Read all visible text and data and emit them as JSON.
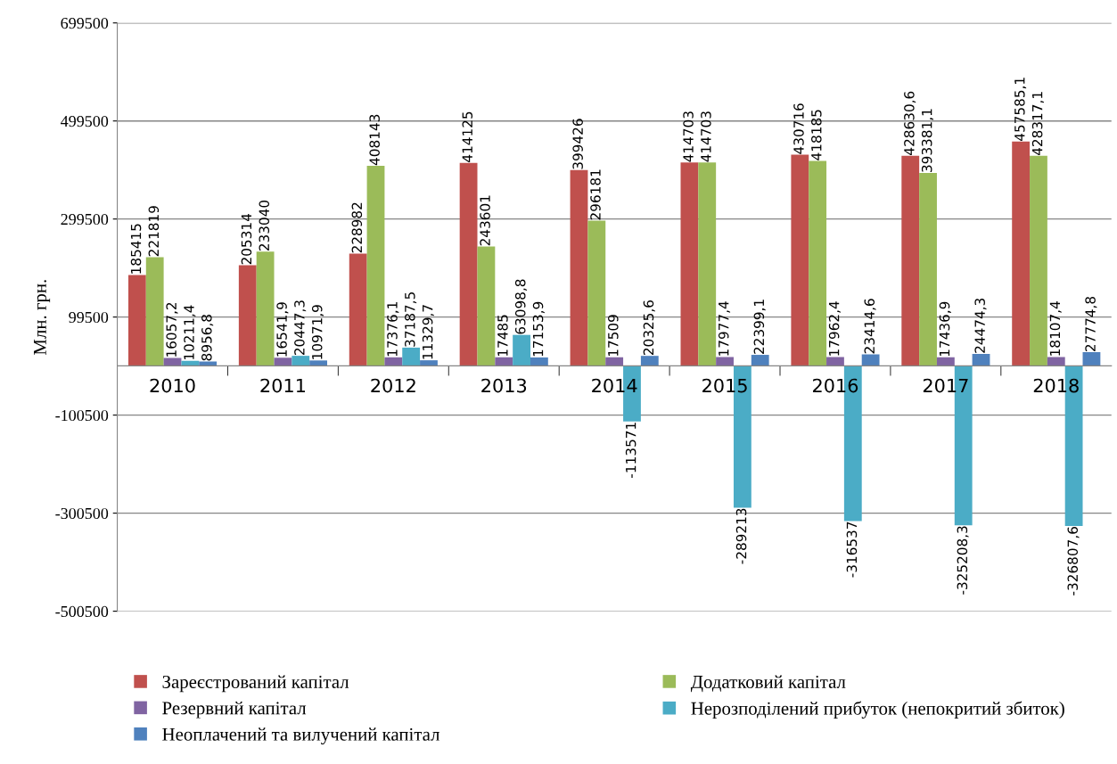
{
  "chart_data": {
    "type": "bar",
    "ylabel": "Млн. грн.",
    "categories": [
      "2010",
      "2011",
      "2012",
      "2013",
      "2014",
      "2015",
      "2016",
      "2017",
      "2018"
    ],
    "series": [
      {
        "name": "Зареєстрований капітал",
        "color": "#c0504d",
        "values": [
          185415,
          205314,
          228982,
          414125,
          399426,
          414703,
          430716,
          428630.6,
          457585.1
        ],
        "value_labels": [
          "185415",
          "205314",
          "228982",
          "414125",
          "399426",
          "414703",
          "430716",
          "428630,6",
          "457585,1"
        ]
      },
      {
        "name": "Додатковий капітал",
        "color": "#9bbb59",
        "values": [
          221819,
          233040,
          408143,
          243601,
          296181,
          414703,
          418185,
          393381.1,
          428317.1
        ],
        "value_labels": [
          "221819",
          "233040",
          "408143",
          "243601",
          "296181",
          "414703",
          "418185",
          "393381,1",
          "428317,1"
        ]
      },
      {
        "name": "Резервний капітал",
        "color": "#8064a2",
        "values": [
          16057.2,
          16541.9,
          17376.1,
          17485,
          17509,
          17977.4,
          17962.4,
          17436.9,
          18107.4
        ],
        "value_labels": [
          "16057,2",
          "16541,9",
          "17376,1",
          "17485",
          "17509",
          "17977,4",
          "17962,4",
          "17436,9",
          "18107,4"
        ]
      },
      {
        "name": "Нерозподілений прибуток (непокритий збиток)",
        "color": "#4bacc6",
        "values": [
          10211.4,
          20447.3,
          37187.5,
          63098.8,
          -113571,
          -289213,
          -316537,
          -325208.3,
          -326807.6
        ],
        "value_labels": [
          "10211,4",
          "20447,3",
          "37187,5",
          "63098,8",
          "-113571",
          "-289213",
          "-316537",
          "-325208,3",
          "-326807,6"
        ]
      },
      {
        "name": "Неоплачений та вилучений капітал",
        "color": "#4f81bd",
        "values": [
          8956.8,
          10971.9,
          11329.7,
          17153.9,
          20325.6,
          22399.1,
          23414.6,
          24474.3,
          27774.8
        ],
        "value_labels": [
          "8956,8",
          "10971,9",
          "11329,7",
          "17153,9",
          "20325,6",
          "22399,1",
          "23414,6",
          "24474,3",
          "27774,8"
        ]
      }
    ],
    "ylim": [
      -500500,
      699500
    ],
    "yticks": [
      -500500,
      -300500,
      -100500,
      99500,
      299500,
      499500,
      699500
    ],
    "grid": "y",
    "legend": "bottom"
  }
}
